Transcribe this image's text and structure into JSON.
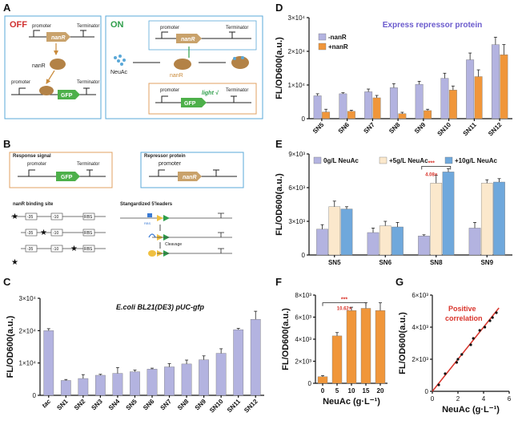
{
  "panels": {
    "A": {
      "label": "A",
      "off_label": "OFF",
      "on_label": "ON",
      "promoter": "promoter",
      "terminator": "Terminator",
      "nanR": "nanR",
      "gfp": "GFP",
      "neuac": "NeuAc",
      "light": "light √"
    },
    "B": {
      "label": "B",
      "response_signal": "Response signal",
      "repressor_protein": "Repressor protein",
      "promoter": "promoter",
      "terminator": "Terminator",
      "gfp": "GFP",
      "nanR": "nanR",
      "binding_site": "nanR binding site",
      "leaders": "Stangardized 5'leaders",
      "m35": "-35",
      "m10": "-10",
      "rbs": "RBS",
      "rbs_small": "RBS",
      "cleavage": "Cleavage"
    },
    "C": {
      "label": "C"
    },
    "D": {
      "label": "D"
    },
    "E": {
      "label": "E"
    },
    "F": {
      "label": "F"
    },
    "G": {
      "label": "G"
    }
  },
  "chart_data": [
    {
      "id": "C",
      "type": "bar",
      "title": "E.coli BL21(DE3) pUC-gfp",
      "xlabel": "",
      "ylabel": "FL/OD600(a.u.)",
      "ylim": [
        0,
        30000
      ],
      "yticks": [
        0,
        10000,
        20000,
        30000
      ],
      "yticklabels": [
        "0",
        "1×10⁴",
        "2×10⁴",
        "3×10⁴"
      ],
      "categories": [
        "tac",
        "SN1",
        "SN2",
        "SN3",
        "SN4",
        "SN5",
        "SN6",
        "SN7",
        "SN8",
        "SN9",
        "SN10",
        "SN11",
        "SN12"
      ],
      "series": [
        {
          "name": "pUC-gfp",
          "color": "#b3b3e0",
          "values": [
            20000,
            4600,
            5200,
            6200,
            6800,
            7300,
            8100,
            8800,
            9700,
            11000,
            13000,
            20300,
            23500
          ],
          "errors": [
            600,
            300,
            1200,
            300,
            1800,
            500,
            300,
            1000,
            1200,
            1200,
            1400,
            400,
            2500
          ]
        }
      ]
    },
    {
      "id": "D",
      "type": "bar",
      "title": "Express repressor protein",
      "xlabel": "",
      "ylabel": "FL/OD600(a.u.)",
      "ylim": [
        0,
        30000
      ],
      "yticks": [
        0,
        10000,
        20000,
        30000
      ],
      "yticklabels": [
        "0",
        "1×10⁴",
        "2×10⁴",
        "3×10⁴"
      ],
      "categories": [
        "SN5",
        "SN6",
        "SN7",
        "SN8",
        "SN9",
        "SN10",
        "SN11",
        "SN12"
      ],
      "series": [
        {
          "name": "-nanR",
          "color": "#b3b3e0",
          "values": [
            6800,
            7400,
            8000,
            9200,
            10200,
            12000,
            17500,
            22000
          ],
          "errors": [
            600,
            300,
            800,
            1200,
            900,
            1500,
            2000,
            2200
          ]
        },
        {
          "name": "+nanR",
          "color": "#f0963a",
          "values": [
            2000,
            2200,
            6200,
            1500,
            2400,
            8500,
            12500,
            19000
          ],
          "errors": [
            800,
            300,
            700,
            400,
            400,
            1200,
            2000,
            3000
          ]
        }
      ]
    },
    {
      "id": "E",
      "type": "bar",
      "title": "",
      "xlabel": "",
      "ylabel": "FL/OD600(a.u.)",
      "ylim": [
        0,
        9000
      ],
      "yticks": [
        0,
        3000,
        6000,
        9000
      ],
      "yticklabels": [
        "0",
        "3×10³",
        "6×10³",
        "9×10³"
      ],
      "categories": [
        "SN5",
        "SN6",
        "SN8",
        "SN9"
      ],
      "series": [
        {
          "name": "0g/L NeuAc",
          "color": "#b3b3e0",
          "values": [
            2300,
            2000,
            1700,
            2400
          ],
          "errors": [
            400,
            400,
            100,
            500
          ]
        },
        {
          "name": "+5g/L NeuAc",
          "color": "#fbe8cc",
          "values": [
            4300,
            2600,
            6400,
            6400
          ],
          "errors": [
            500,
            400,
            700,
            300
          ]
        },
        {
          "name": "+10g/L NeuAc",
          "color": "#6fa8dc",
          "values": [
            4100,
            2500,
            7400,
            6500
          ],
          "errors": [
            200,
            400,
            300,
            300
          ]
        }
      ],
      "annotation": {
        "stars": "***",
        "text": "4.08×"
      }
    },
    {
      "id": "F",
      "type": "bar",
      "title": "",
      "xlabel": "NeuAc (g·L⁻¹)",
      "ylabel": "FL/OD600(a.u.)",
      "ylim": [
        0,
        8000
      ],
      "yticks": [
        0,
        2000,
        4000,
        6000,
        8000
      ],
      "yticklabels": [
        "0",
        "2×10³",
        "4×10³",
        "6×10³",
        "8×10³"
      ],
      "categories": [
        "0",
        "5",
        "10",
        "15",
        "20"
      ],
      "series": [
        {
          "name": "FL",
          "color": "#f0963a",
          "values": [
            600,
            4300,
            6600,
            6800,
            6600
          ],
          "errors": [
            100,
            300,
            300,
            500,
            700
          ]
        }
      ],
      "annotation": {
        "stars": "***",
        "text": "10.62×"
      }
    },
    {
      "id": "G",
      "type": "scatter",
      "title": "",
      "xlabel": "NeuAc (g·L⁻¹)",
      "ylabel": "FL/OD600(a.u.)",
      "xlim": [
        0,
        6
      ],
      "ylim": [
        0,
        6000
      ],
      "xticks": [
        0,
        2,
        4,
        6
      ],
      "yticks": [
        0,
        2000,
        4000,
        6000
      ],
      "yticklabels": [
        "0",
        "2×10³",
        "4×10³",
        "6×10³"
      ],
      "x": [
        0.5,
        1.0,
        1.9,
        2.0,
        2.3,
        3.0,
        3.2,
        3.7,
        4.1,
        4.5,
        4.7,
        5.0
      ],
      "y": [
        400,
        1100,
        1800,
        2000,
        2300,
        2900,
        3300,
        3800,
        4000,
        4400,
        4600,
        4900
      ],
      "fit": {
        "x": [
          0,
          5.2
        ],
        "y": [
          0,
          5200
        ],
        "color": "#d9342b"
      },
      "annotation": "Positive correlation"
    }
  ]
}
